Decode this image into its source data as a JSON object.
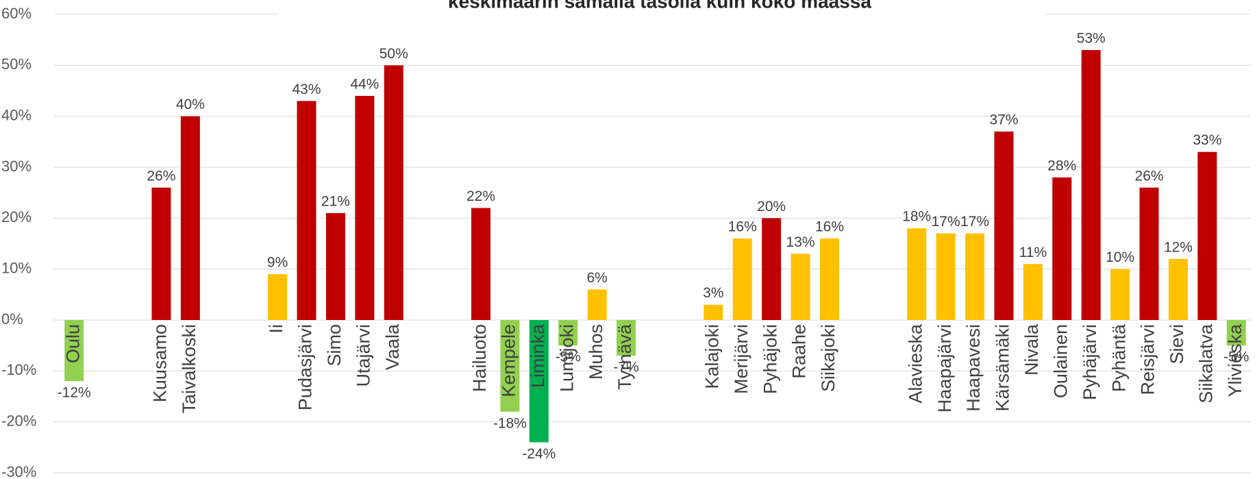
{
  "chart_data": {
    "type": "bar",
    "title": "keskimäärin samalla tasolla kuin koko maassa",
    "categories": [
      "Oulu",
      null,
      null,
      "Kuusamo",
      "Taivalkoski",
      null,
      null,
      "Ii",
      "Pudasjärvi",
      "Simo",
      "Utajärvi",
      "Vaala",
      null,
      null,
      "Hailuoto",
      "Kempele",
      "Liminka",
      "Lumijoki",
      "Muhos",
      "Tyrnävä",
      null,
      null,
      "Kalajoki",
      "Merijärvi",
      "Pyhäjoki",
      "Raahe",
      "Siikajoki",
      null,
      null,
      "Alavieska",
      "Haapajärvi",
      "Haapavesi",
      "Kärsämäki",
      "Nivala",
      "Oulainen",
      "Pyhäjärvi",
      "Pyhäntä",
      "Reisjärvi",
      "Sievi",
      "Siikalatva",
      "Ylivieska"
    ],
    "values": [
      -12,
      null,
      null,
      26,
      40,
      null,
      null,
      9,
      43,
      21,
      44,
      50,
      null,
      null,
      22,
      -18,
      -24,
      -5,
      6,
      -7,
      null,
      null,
      3,
      16,
      20,
      13,
      16,
      null,
      null,
      18,
      17,
      17,
      37,
      11,
      28,
      53,
      10,
      26,
      12,
      33,
      -5
    ],
    "value_labels": [
      "-12%",
      null,
      null,
      "26%",
      "40%",
      null,
      null,
      "9%",
      "43%",
      "21%",
      "44%",
      "50%",
      null,
      null,
      "22%",
      "-18%",
      "-24%",
      "-5%",
      "6%",
      "-7%",
      null,
      null,
      "3%",
      "16%",
      "20%",
      "13%",
      "16%",
      null,
      null,
      "18%",
      "17%",
      "17%",
      "37%",
      "11%",
      "28%",
      "53%",
      "10%",
      "26%",
      "12%",
      "33%",
      "-5%"
    ],
    "colors": [
      "#92d050",
      null,
      null,
      "#c00000",
      "#c00000",
      null,
      null,
      "#ffc000",
      "#c00000",
      "#c00000",
      "#c00000",
      "#c00000",
      null,
      null,
      "#c00000",
      "#92d050",
      "#00b050",
      "#92d050",
      "#ffc000",
      "#92d050",
      null,
      null,
      "#ffc000",
      "#ffc000",
      "#c00000",
      "#ffc000",
      "#ffc000",
      null,
      null,
      "#ffc000",
      "#ffc000",
      "#ffc000",
      "#c00000",
      "#ffc000",
      "#c00000",
      "#c00000",
      "#ffc000",
      "#c00000",
      "#ffc000",
      "#c00000",
      "#92d050"
    ],
    "ylim": [
      -30,
      60
    ],
    "yticks": [
      {
        "value": -30,
        "label": "-30%"
      },
      {
        "value": -20,
        "label": "-20%"
      },
      {
        "value": -10,
        "label": "-10%"
      },
      {
        "value": 0,
        "label": "0%"
      },
      {
        "value": 10,
        "label": "10%"
      },
      {
        "value": 20,
        "label": "20%"
      },
      {
        "value": 30,
        "label": "30%"
      },
      {
        "value": 40,
        "label": "40%"
      },
      {
        "value": 50,
        "label": "50%"
      },
      {
        "value": 60,
        "label": "60%"
      }
    ],
    "grid": true
  }
}
